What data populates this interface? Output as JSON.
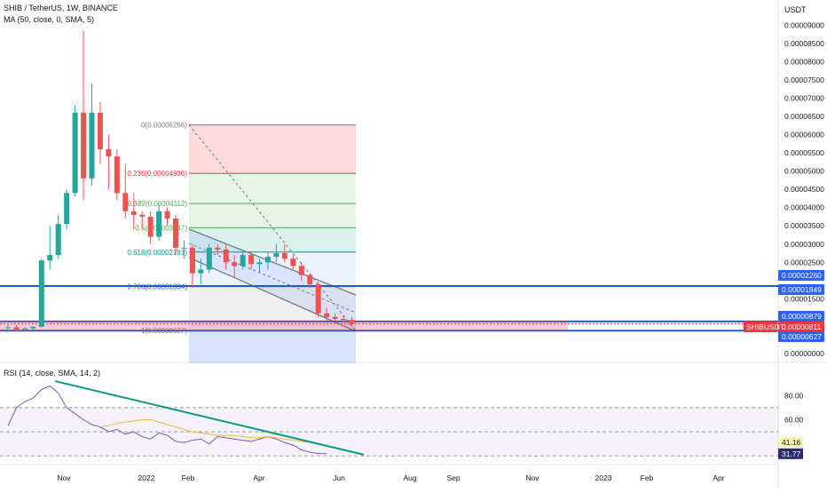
{
  "header": {
    "title": "SHIB / TetherUS, 1W, BINANCE",
    "ma_label": "MA (50, close, 0, SMA, 5)",
    "rsi_label": "RSI (14, close, SMA, 14, 2)",
    "currency": "USDT"
  },
  "y_axis": {
    "labels": [
      "0.00009000",
      "0.00008500",
      "0.00008000",
      "0.00007500",
      "0.00007000",
      "0.00006500",
      "0.00006000",
      "0.00005500",
      "0.00005000",
      "0.00004500",
      "0.00004000",
      "0.00003500",
      "0.00003000",
      "0.00002500",
      "0.00001500",
      "0.00000000"
    ]
  },
  "price_tags": [
    {
      "text": "0.00002260",
      "bg": "#2962ff",
      "fg": "#ffffff"
    },
    {
      "text": "0.00001849",
      "bg": "#2962ff",
      "fg": "#ffffff"
    },
    {
      "text": "0.00000879",
      "bg": "#2962ff",
      "fg": "#ffffff"
    },
    {
      "text": "0.00000811",
      "bg": "#f23645",
      "fg": "#ffffff"
    },
    {
      "text": "0.00000627",
      "bg": "#2962ff",
      "fg": "#ffffff"
    }
  ],
  "symbol_tag": "SHIBUSDT",
  "fib_levels": [
    {
      "label": "0(0.00006266)",
      "color": "#787b86"
    },
    {
      "label": "0.236(0.00004936)",
      "color": "#f23645"
    },
    {
      "label": "0.382(0.00004112)",
      "color": "#4caf50"
    },
    {
      "label": "0.5(0.00003447)",
      "color": "#4caf50"
    },
    {
      "label": "0.618(0.00002781)",
      "color": "#089981"
    },
    {
      "label": "0.786(0.00001834)",
      "color": "#2962ff"
    },
    {
      "label": "1(0.00000627)",
      "color": "#787b86"
    }
  ],
  "rsi_axis": {
    "labels": [
      "80.00",
      "60.00"
    ]
  },
  "rsi_tags": [
    {
      "text": "41.16",
      "bg": "#fff3b0",
      "fg": "#131722"
    },
    {
      "text": "31.77",
      "bg": "#2a2e6e",
      "fg": "#ffffff"
    }
  ],
  "x_axis": {
    "labels": [
      "Nov",
      "2022",
      "Feb",
      "Apr",
      "Jun",
      "Aug",
      "Sep",
      "Nov",
      "2023",
      "Feb",
      "Apr"
    ]
  },
  "colors": {
    "up": "#26a69a",
    "down": "#ef5350",
    "hline": "#1e5bd6",
    "rsi_line": "#7e57c2",
    "rsi_ma": "#f5b642",
    "trend": "#089981"
  },
  "chart_data": {
    "type": "candlestick",
    "title": "SHIB / TetherUS, 1W, BINANCE",
    "y_unit": "USDT",
    "ylim": [
      0,
      9.25e-05
    ],
    "candles": [
      {
        "o": 7e-06,
        "h": 8e-06,
        "l": 6e-06,
        "c": 7.2e-06
      },
      {
        "o": 7.2e-06,
        "h": 7.8e-06,
        "l": 6.2e-06,
        "c": 6.6e-06
      },
      {
        "o": 6.6e-06,
        "h": 7.2e-06,
        "l": 6.2e-06,
        "c": 6.9e-06
      },
      {
        "o": 6.9e-06,
        "h": 7.5e-06,
        "l": 6.5e-06,
        "c": 7.3e-06
      },
      {
        "o": 7.3e-06,
        "h": 2.6e-05,
        "l": 7.2e-06,
        "c": 2.55e-05
      },
      {
        "o": 2.55e-05,
        "h": 3.5e-05,
        "l": 2.3e-05,
        "c": 2.7e-05
      },
      {
        "o": 2.7e-05,
        "h": 3.8e-05,
        "l": 2.6e-05,
        "c": 3.55e-05
      },
      {
        "o": 3.55e-05,
        "h": 4.5e-05,
        "l": 3.4e-05,
        "c": 4.4e-05
      },
      {
        "o": 4.4e-05,
        "h": 6.8e-05,
        "l": 4.3e-05,
        "c": 6.6e-05
      },
      {
        "o": 6.6e-05,
        "h": 8.85e-05,
        "l": 4.2e-05,
        "c": 4.8e-05
      },
      {
        "o": 4.8e-05,
        "h": 7.4e-05,
        "l": 4.6e-05,
        "c": 6.6e-05
      },
      {
        "o": 6.6e-05,
        "h": 6.9e-05,
        "l": 5.2e-05,
        "c": 5.6e-05
      },
      {
        "o": 5.6e-05,
        "h": 6e-05,
        "l": 4.5e-05,
        "c": 5.4e-05
      },
      {
        "o": 5.4e-05,
        "h": 5.6e-05,
        "l": 4.2e-05,
        "c": 4.4e-05
      },
      {
        "o": 4.4e-05,
        "h": 5.2e-05,
        "l": 3.7e-05,
        "c": 3.9e-05
      },
      {
        "o": 3.9e-05,
        "h": 4.4e-05,
        "l": 3.4e-05,
        "c": 3.8e-05
      },
      {
        "o": 3.8e-05,
        "h": 3.9e-05,
        "l": 3.4e-05,
        "c": 3.75e-05
      },
      {
        "o": 3.75e-05,
        "h": 3.9e-05,
        "l": 3e-05,
        "c": 3.2e-05
      },
      {
        "o": 3.2e-05,
        "h": 4.1e-05,
        "l": 3.1e-05,
        "c": 3.9e-05
      },
      {
        "o": 3.9e-05,
        "h": 4e-05,
        "l": 3.5e-05,
        "c": 3.7e-05
      },
      {
        "o": 3.7e-05,
        "h": 3.8e-05,
        "l": 2.7e-05,
        "c": 2.9e-05
      },
      {
        "o": 2.9e-05,
        "h": 3.1e-05,
        "l": 2.6e-05,
        "c": 2.9e-05
      },
      {
        "o": 2.9e-05,
        "h": 3e-05,
        "l": 1.8e-05,
        "c": 2.2e-05
      },
      {
        "o": 2.2e-05,
        "h": 2.6e-05,
        "l": 1.9e-05,
        "c": 2.3e-05
      },
      {
        "o": 2.3e-05,
        "h": 3e-05,
        "l": 2.2e-05,
        "c": 2.9e-05
      },
      {
        "o": 2.9e-05,
        "h": 3e-05,
        "l": 2.7e-05,
        "c": 2.85e-05
      },
      {
        "o": 2.85e-05,
        "h": 3e-05,
        "l": 2.3e-05,
        "c": 2.5e-05
      },
      {
        "o": 2.5e-05,
        "h": 2.7e-05,
        "l": 2.1e-05,
        "c": 2.4e-05
      },
      {
        "o": 2.4e-05,
        "h": 2.8e-05,
        "l": 2.3e-05,
        "c": 2.7e-05
      },
      {
        "o": 2.7e-05,
        "h": 2.8e-05,
        "l": 2.3e-05,
        "c": 2.45e-05
      },
      {
        "o": 2.45e-05,
        "h": 2.6e-05,
        "l": 2.2e-05,
        "c": 2.5e-05
      },
      {
        "o": 2.5e-05,
        "h": 2.8e-05,
        "l": 2.3e-05,
        "c": 2.65e-05
      },
      {
        "o": 2.65e-05,
        "h": 3e-05,
        "l": 2.5e-05,
        "c": 2.75e-05
      },
      {
        "o": 2.75e-05,
        "h": 3e-05,
        "l": 2.5e-05,
        "c": 2.6e-05
      },
      {
        "o": 2.6e-05,
        "h": 2.7e-05,
        "l": 2.3e-05,
        "c": 2.4e-05
      },
      {
        "o": 2.4e-05,
        "h": 2.5e-05,
        "l": 2e-05,
        "c": 2.15e-05
      },
      {
        "o": 2.15e-05,
        "h": 2.2e-05,
        "l": 1.8e-05,
        "c": 1.9e-05
      },
      {
        "o": 1.9e-05,
        "h": 1.95e-05,
        "l": 1e-05,
        "c": 1.1e-05
      },
      {
        "o": 1.1e-05,
        "h": 1.25e-05,
        "l": 9e-06,
        "c": 1e-05
      },
      {
        "o": 1e-05,
        "h": 1.1e-05,
        "l": 9e-06,
        "c": 9.5e-06
      },
      {
        "o": 9.5e-06,
        "h": 1.05e-05,
        "l": 8.5e-06,
        "c": 9.2e-06
      },
      {
        "o": 9.2e-06,
        "h": 1e-05,
        "l": 7.5e-06,
        "c": 8.1e-06
      }
    ],
    "rsi": [
      55,
      70,
      75,
      78,
      85,
      88,
      82,
      70,
      65,
      60,
      56,
      54,
      50,
      52,
      48,
      50,
      46,
      44,
      49,
      47,
      42,
      41,
      43,
      44,
      40,
      46,
      45,
      44,
      43,
      42,
      44,
      46,
      44,
      41,
      39,
      35,
      33,
      32,
      31.77
    ],
    "rsi_ma": [
      null,
      null,
      null,
      null,
      null,
      null,
      null,
      null,
      null,
      null,
      null,
      54,
      55,
      57,
      58,
      59,
      60,
      60,
      58,
      56,
      54,
      52,
      50,
      49,
      48,
      47,
      47,
      47,
      46,
      45,
      45,
      46,
      45,
      44,
      43,
      42,
      41.16
    ]
  }
}
